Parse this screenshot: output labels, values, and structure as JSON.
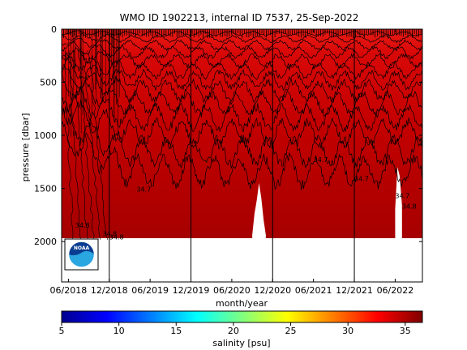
{
  "chart_data": {
    "type": "heatmap",
    "title": "WMO ID 1902213, internal ID 7537, 25-Sep-2022",
    "xlabel": "month/year",
    "ylabel": "pressure [dbar]",
    "x_ticks": [
      "06/2018",
      "12/2018",
      "06/2019",
      "12/2019",
      "06/2020",
      "12/2020",
      "06/2021",
      "12/2021",
      "06/2022"
    ],
    "y_ticks": [
      "0",
      "500",
      "1000",
      "1500",
      "2000"
    ],
    "ylim": [
      0,
      2380
    ],
    "y_reversed": true,
    "xlim": [
      "05/2018",
      "10/2022"
    ],
    "gridlines_x": [
      "12/2018",
      "12/2019",
      "12/2020",
      "12/2021"
    ],
    "colorbar": {
      "label": "salinity [psu]",
      "ticks": [
        "5",
        "10",
        "15",
        "20",
        "25",
        "30",
        "35"
      ],
      "range": [
        5,
        36.5
      ],
      "colormap": "jet"
    },
    "contour_labels": [
      {
        "text": "34.8",
        "x": "07/2018",
        "y": 1870
      },
      {
        "text": "34.8",
        "x": "11/2018",
        "y": 1950
      },
      {
        "text": "34.8",
        "x": "12/2018",
        "y": 1980
      },
      {
        "text": "34.7",
        "x": "04/2019",
        "y": 1530
      },
      {
        "text": "34.7",
        "x": "06/2021",
        "y": 1250
      },
      {
        "text": "34.7",
        "x": "12/2021",
        "y": 1430
      },
      {
        "text": "34.7",
        "x": "06/2022",
        "y": 1590
      },
      {
        "text": "34.8",
        "x": "07/2022",
        "y": 1690
      }
    ],
    "data_gaps": [
      {
        "from": "09/2020",
        "to": "11/2020",
        "pressure_top": 1400
      },
      {
        "from": "06/2022",
        "to": "07/2022",
        "pressure_top": 1120
      }
    ],
    "profile_depth_max": 2000
  },
  "logo": {
    "text": "NOAA"
  },
  "colors": {
    "dark_red": "#aa0000",
    "mid_red": "#c80000",
    "surface_red": "#e81010"
  }
}
